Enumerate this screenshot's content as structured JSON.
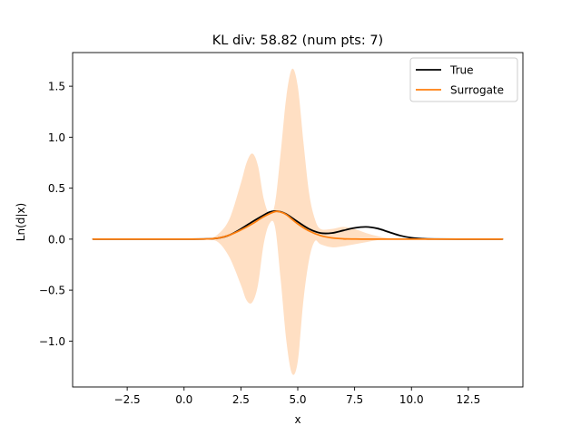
{
  "chart_data": {
    "type": "line",
    "title": "KL div: 58.82 (num pts: 7)",
    "xlabel": "x",
    "ylabel": "Ln(d|x)",
    "xlim": [
      -4.9,
      14.9
    ],
    "ylim": [
      -1.45,
      1.83
    ],
    "xticks": [
      -2.5,
      0.0,
      2.5,
      5.0,
      7.5,
      10.0,
      12.5
    ],
    "xtick_labels": [
      "−2.5",
      "0.0",
      "2.5",
      "5.0",
      "7.5",
      "10.0",
      "12.5"
    ],
    "yticks": [
      -1.0,
      -0.5,
      0.0,
      0.5,
      1.0,
      1.5
    ],
    "ytick_labels": [
      "−1.0",
      "−0.5",
      "0.0",
      "0.5",
      "1.0",
      "1.5"
    ],
    "grid": false,
    "legend": {
      "position": "top-right"
    },
    "series": [
      {
        "name": "True",
        "color": "#000000",
        "x": [
          -4.0,
          -2.0,
          0.0,
          1.0,
          1.5,
          2.0,
          2.5,
          3.0,
          3.5,
          3.75,
          4.0,
          4.25,
          4.5,
          5.0,
          5.5,
          6.0,
          6.5,
          7.0,
          7.5,
          8.0,
          8.5,
          9.0,
          9.5,
          10.0,
          10.5,
          11.0,
          12.0,
          14.0
        ],
        "y": [
          0.0,
          0.0,
          0.0,
          0.002,
          0.01,
          0.04,
          0.1,
          0.17,
          0.235,
          0.265,
          0.275,
          0.268,
          0.245,
          0.17,
          0.1,
          0.06,
          0.06,
          0.085,
          0.11,
          0.12,
          0.105,
          0.07,
          0.035,
          0.013,
          0.004,
          0.001,
          0.0,
          0.0
        ]
      },
      {
        "name": "Surrogate",
        "color": "#ff7f0e",
        "x": [
          -4.0,
          -2.0,
          0.0,
          1.0,
          1.5,
          2.0,
          2.5,
          3.0,
          3.5,
          4.0,
          4.25,
          4.5,
          5.0,
          5.5,
          6.0,
          6.5,
          7.0,
          7.5,
          8.0,
          9.0,
          10.0,
          14.0
        ],
        "y": [
          0.0,
          0.0,
          0.0,
          0.002,
          0.01,
          0.04,
          0.09,
          0.15,
          0.22,
          0.27,
          0.265,
          0.24,
          0.15,
          0.08,
          0.035,
          0.012,
          0.003,
          0.001,
          0.0,
          0.0,
          0.0,
          0.0
        ]
      }
    ],
    "confidence_band": {
      "series": "Surrogate",
      "color": "#ff7f0e",
      "opacity": 0.25,
      "x": [
        -4.0,
        0.0,
        1.0,
        1.5,
        2.0,
        2.5,
        2.75,
        3.0,
        3.25,
        3.5,
        3.75,
        4.0,
        4.25,
        4.5,
        4.75,
        5.0,
        5.25,
        5.5,
        5.75,
        6.0,
        6.5,
        7.0,
        7.5,
        8.0,
        8.5,
        9.0,
        10.0,
        14.0
      ],
      "upper": [
        0.0,
        0.0,
        0.005,
        0.05,
        0.2,
        0.55,
        0.75,
        0.84,
        0.72,
        0.4,
        0.25,
        0.35,
        0.85,
        1.4,
        1.67,
        1.5,
        0.95,
        0.45,
        0.2,
        0.1,
        0.1,
        0.12,
        0.1,
        0.06,
        0.03,
        0.01,
        0.0,
        0.0
      ],
      "lower": [
        0.0,
        0.0,
        -0.005,
        -0.03,
        -0.18,
        -0.45,
        -0.6,
        -0.62,
        -0.45,
        -0.05,
        0.15,
        0.12,
        -0.4,
        -1.0,
        -1.32,
        -1.2,
        -0.6,
        -0.2,
        -0.02,
        -0.05,
        -0.08,
        -0.07,
        -0.05,
        -0.03,
        -0.01,
        -0.005,
        0.0,
        0.0
      ]
    }
  }
}
